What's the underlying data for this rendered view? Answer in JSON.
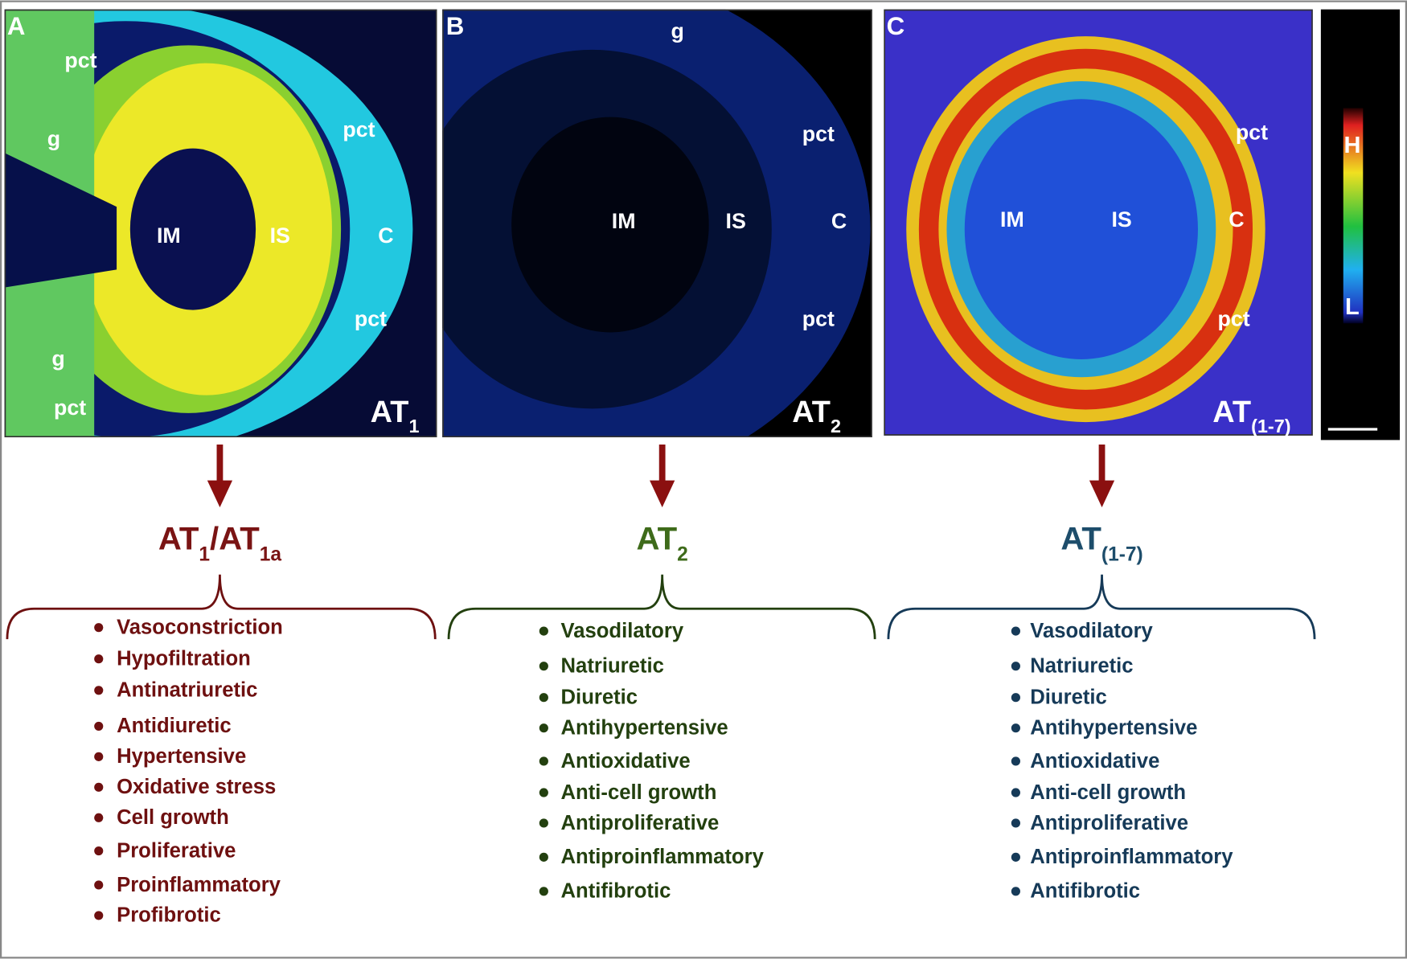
{
  "panels": [
    {
      "letter": "A",
      "image_labels": [
        "pct",
        "g",
        "pct",
        "IM",
        "IS",
        "C",
        "pct",
        "g",
        "pct"
      ],
      "receptor": [
        {
          "text": "AT"
        },
        {
          "text": "1",
          "sub": true
        }
      ],
      "heading": [
        {
          "text": "AT"
        },
        {
          "text": "1",
          "sub": true
        },
        {
          "text": "/AT"
        },
        {
          "text": "1a",
          "sub": true
        }
      ],
      "effects": [
        "Vasoconstriction",
        "Hypofiltration",
        "Antinatriuretic",
        "Antidiuretic",
        "Hypertensive",
        "Oxidative stress",
        "Cell growth",
        "Proliferative",
        "Proinflammatory",
        "Profibrotic"
      ]
    },
    {
      "letter": "B",
      "image_labels": [
        "g",
        "pct",
        "IM",
        "IS",
        "C",
        "pct"
      ],
      "receptor": [
        {
          "text": "AT"
        },
        {
          "text": "2",
          "sub": true
        }
      ],
      "heading": [
        {
          "text": "AT"
        },
        {
          "text": "2",
          "sub": true
        }
      ],
      "effects": [
        "Vasodilatory",
        "Natriuretic",
        "Diuretic",
        "Antihypertensive",
        "Antioxidative",
        "Anti-cell growth",
        "Antiproliferative",
        "Antiproinflammatory",
        "Antifibrotic"
      ]
    },
    {
      "letter": "C",
      "image_labels": [
        "pct",
        "IM",
        "IS",
        "C",
        "pct"
      ],
      "receptor": [
        {
          "text": "AT"
        },
        {
          "text": "(1-7)",
          "sub": true
        }
      ],
      "heading": [
        {
          "text": "AT"
        },
        {
          "text": "(1-7)",
          "sub": true
        }
      ],
      "effects": [
        "Vasodilatory",
        "Natriuretic",
        "Diuretic",
        "Antihypertensive",
        "Antioxidative",
        "Anti-cell growth",
        "Antiproliferative",
        "Antiproinflammatory",
        "Antifibrotic"
      ]
    }
  ],
  "colorbar": {
    "high": "H",
    "low": "L"
  }
}
